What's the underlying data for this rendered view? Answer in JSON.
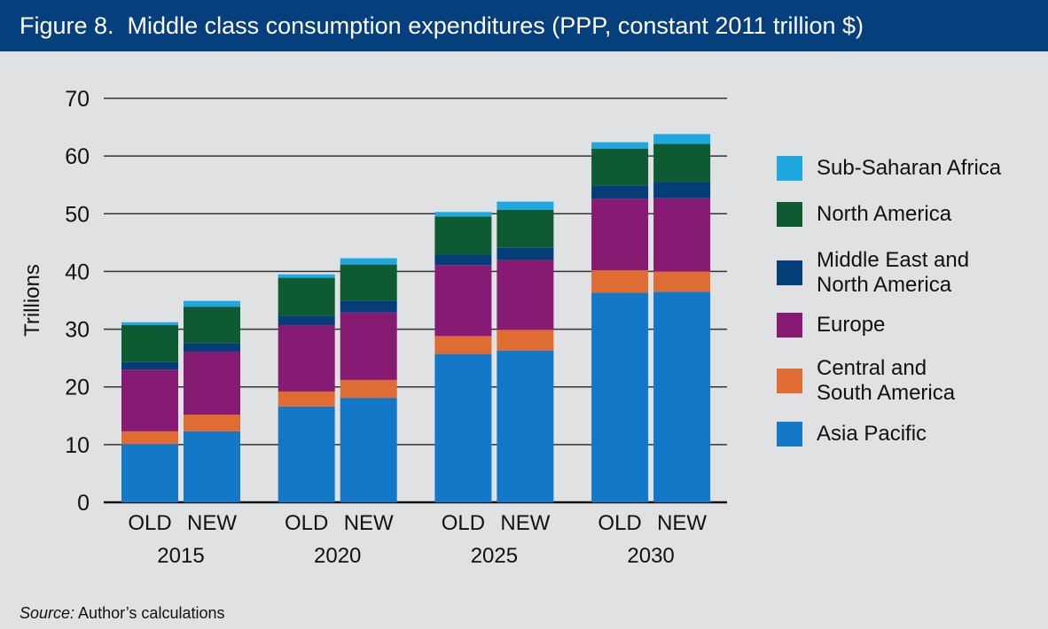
{
  "title": "Figure 8.  Middle class consumption expenditures (PPP, constant 2011 trillion $)",
  "source": {
    "label": "Source:",
    "text": " Author’s calculations"
  },
  "chart_data": {
    "type": "bar",
    "stacked": true,
    "title": "Figure 8.  Middle class consumption expenditures (PPP, constant 2011 trillion $)",
    "ylabel": "Trillions",
    "xlabel": "",
    "ylim": [
      0,
      70
    ],
    "yticks": [
      0,
      10,
      20,
      30,
      40,
      50,
      60,
      70
    ],
    "grid": true,
    "legend_position": "right",
    "groups": [
      "2015",
      "2020",
      "2025",
      "2030"
    ],
    "subcategories": [
      "OLD",
      "NEW"
    ],
    "categories": [
      "2015 OLD",
      "2015 NEW",
      "2020 OLD",
      "2020 NEW",
      "2025 OLD",
      "2025 NEW",
      "2030 OLD",
      "2030 NEW"
    ],
    "series": [
      {
        "name": "Asia Pacific",
        "color": "#1378c7",
        "values": [
          10.1,
          12.3,
          16.6,
          18.1,
          25.7,
          26.3,
          36.3,
          36.5
        ]
      },
      {
        "name": "Central and\nSouth America",
        "color": "#df6c33",
        "values": [
          2.2,
          2.9,
          2.6,
          3.1,
          3.1,
          3.6,
          3.9,
          3.5
        ]
      },
      {
        "name": "Europe",
        "color": "#871b73",
        "values": [
          10.7,
          10.9,
          11.5,
          11.7,
          12.3,
          12.1,
          12.4,
          12.7
        ]
      },
      {
        "name": "Middle East and\nNorth America",
        "color": "#053d79",
        "values": [
          1.3,
          1.5,
          1.6,
          2.0,
          1.8,
          2.1,
          2.3,
          2.8
        ]
      },
      {
        "name": "North America",
        "color": "#0e5b33",
        "values": [
          6.4,
          6.3,
          6.6,
          6.3,
          6.6,
          6.6,
          6.4,
          6.6
        ]
      },
      {
        "name": "Sub-Saharan Africa",
        "color": "#1da9e0",
        "values": [
          0.5,
          1.0,
          0.6,
          1.1,
          0.8,
          1.4,
          1.1,
          1.7
        ]
      }
    ]
  }
}
